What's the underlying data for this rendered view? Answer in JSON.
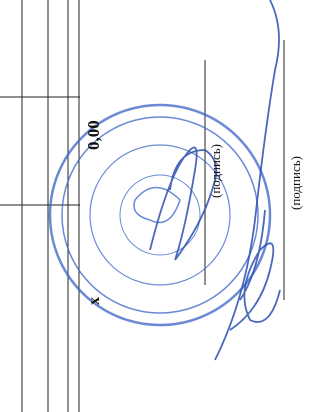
{
  "document": {
    "amount": "0,00",
    "mark": "х",
    "signatures": [
      {
        "caption": "(подпись)"
      },
      {
        "caption": "(подпись)"
      }
    ]
  }
}
